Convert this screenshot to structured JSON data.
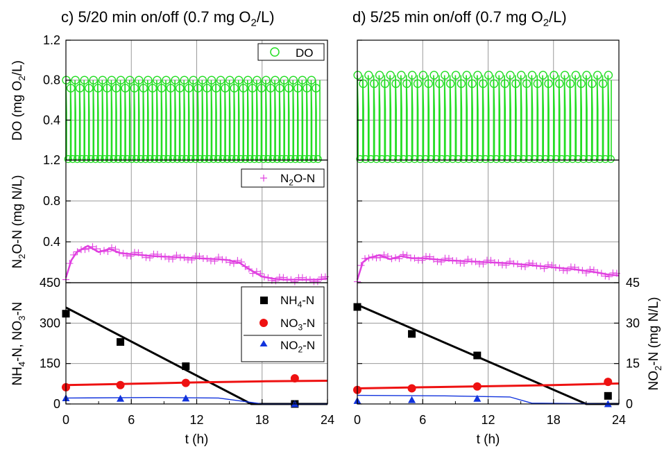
{
  "colors": {
    "do": "#22dd22",
    "n2o": "#e040e0",
    "nh4": "#000000",
    "no3": "#ee1111",
    "no2": "#1133dd",
    "grid": "#9a9a9a"
  },
  "labels": {
    "xlabel": "t (h)",
    "ylabel_do": "DO (mg O₂/L)",
    "ylabel_n2o": "N₂O-N (mg N/L)",
    "ylabel_n": "NH₄-N, NO₃-N",
    "ylabel_no2": "NO₂-N (mg N/L)"
  },
  "legend": {
    "do": "DO",
    "n2o": "N₂O-N",
    "nh4": "NH₄-N",
    "no3": "NO₃-N",
    "no2": "NO₂-N"
  },
  "ticks": {
    "x": [
      "0",
      "6",
      "12",
      "18",
      "24"
    ],
    "do": [
      "0.4",
      "0.8",
      "1.2"
    ],
    "n2o": [
      "0.4",
      "0.8",
      "1.2"
    ],
    "n": [
      "0",
      "150",
      "300",
      "450"
    ],
    "no2": [
      "0",
      "15",
      "30",
      "45"
    ]
  },
  "chart_data": [
    {
      "panel": "c",
      "title": "c) 5/20 min on/off (0.7 mg O₂/L)",
      "type": "scatter",
      "xlabel": "t (h)",
      "xlim": [
        0,
        24
      ],
      "aeration_cycle_min": {
        "on": 5,
        "off": 20
      },
      "subplots": [
        {
          "name": "DO",
          "ylabel": "DO (mg O₂/L)",
          "ylim": [
            0,
            1.2
          ],
          "series": [
            {
              "name": "DO",
              "marker": "open-circle",
              "on_peak": 0.8,
              "off_level": 0.0,
              "end_x": 23
            }
          ]
        },
        {
          "name": "N2O",
          "ylabel": "N₂O-N (mg N/L)",
          "ylim": [
            0,
            1.2
          ],
          "series": [
            {
              "name": "N₂O-N",
              "marker": "plus",
              "x": [
                0,
                0.5,
                1,
                2,
                3,
                4,
                5,
                6,
                8,
                10,
                12,
                14,
                15,
                16,
                17,
                18,
                19,
                20,
                21,
                22,
                23,
                24
              ],
              "y": [
                0.05,
                0.22,
                0.3,
                0.36,
                0.3,
                0.33,
                0.29,
                0.28,
                0.26,
                0.25,
                0.24,
                0.23,
                0.22,
                0.19,
                0.12,
                0.06,
                0.04,
                0.03,
                0.03,
                0.03,
                0.03,
                0.04
              ]
            }
          ]
        },
        {
          "name": "Nitrogen",
          "ylabel": "NH₄-N, NO₃-N",
          "ylim": [
            0,
            450
          ],
          "y2label": "NO₂-N (mg N/L)",
          "y2lim": [
            0,
            45
          ],
          "series": [
            {
              "name": "NH₄-N",
              "marker": "square",
              "x": [
                0,
                5,
                11,
                21
              ],
              "y": [
                335,
                230,
                140,
                0
              ]
            },
            {
              "name": "NO₃-N",
              "marker": "circle",
              "x": [
                0,
                5,
                11,
                21
              ],
              "y": [
                62,
                70,
                78,
                95
              ]
            },
            {
              "name": "NO₂-N",
              "marker": "triangle",
              "axis": "right",
              "x": [
                0,
                5,
                11,
                21
              ],
              "y": [
                2.2,
                2.0,
                2.1,
                0
              ]
            }
          ],
          "model": [
            {
              "name": "NH₄-N model",
              "x": [
                0,
                17,
                24
              ],
              "y": [
                358,
                0,
                0
              ]
            },
            {
              "name": "NO₃-N model",
              "x": [
                0,
                6,
                12,
                18,
                24
              ],
              "y": [
                70,
                75,
                80,
                84,
                86
              ]
            },
            {
              "name": "NO₂-N model",
              "axis": "right",
              "x": [
                0,
                8,
                14,
                17,
                18,
                24
              ],
              "y": [
                2.2,
                2.4,
                2.2,
                0.6,
                0,
                0
              ]
            }
          ]
        }
      ]
    },
    {
      "panel": "d",
      "title": "d) 5/25 min on/off (0.7 mg O₂/L)",
      "type": "scatter",
      "xlabel": "t (h)",
      "xlim": [
        0,
        24
      ],
      "aeration_cycle_min": {
        "on": 5,
        "off": 25
      },
      "subplots": [
        {
          "name": "DO",
          "ylabel": "DO (mg O₂/L)",
          "ylim": [
            0,
            1.2
          ],
          "series": [
            {
              "name": "DO",
              "marker": "open-circle",
              "on_peak": 0.85,
              "off_level": 0.0,
              "end_x": 23
            }
          ]
        },
        {
          "name": "N2O",
          "ylabel": "N₂O-N (mg N/L)",
          "ylim": [
            0,
            1.2
          ],
          "series": [
            {
              "name": "N₂O-N",
              "marker": "plus",
              "x": [
                0,
                0.5,
                1,
                2,
                3,
                4,
                5,
                6,
                8,
                10,
                12,
                14,
                16,
                18,
                20,
                22,
                23,
                24
              ],
              "y": [
                0.03,
                0.2,
                0.24,
                0.27,
                0.23,
                0.26,
                0.24,
                0.24,
                0.22,
                0.21,
                0.2,
                0.19,
                0.17,
                0.15,
                0.13,
                0.1,
                0.08,
                0.07
              ]
            }
          ]
        },
        {
          "name": "Nitrogen",
          "ylabel": "NH₄-N, NO₃-N",
          "ylim": [
            0,
            450
          ],
          "y2label": "NO₂-N (mg N/L)",
          "y2lim": [
            0,
            45
          ],
          "series": [
            {
              "name": "NH₄-N",
              "marker": "square",
              "x": [
                0,
                5,
                11,
                23
              ],
              "y": [
                360,
                260,
                180,
                30
              ]
            },
            {
              "name": "NO₃-N",
              "marker": "circle",
              "x": [
                0,
                5,
                11,
                23
              ],
              "y": [
                52,
                58,
                65,
                82
              ]
            },
            {
              "name": "NO₂-N",
              "marker": "triangle",
              "axis": "right",
              "x": [
                0,
                5,
                11,
                23
              ],
              "y": [
                1.2,
                1.5,
                2.0,
                0
              ]
            }
          ],
          "model": [
            {
              "name": "NH₄-N model",
              "x": [
                0,
                21,
                24
              ],
              "y": [
                368,
                0,
                0
              ]
            },
            {
              "name": "NO₃-N model",
              "x": [
                0,
                6,
                12,
                18,
                24
              ],
              "y": [
                58,
                62,
                66,
                70,
                76
              ]
            },
            {
              "name": "NO₂-N model",
              "axis": "right",
              "x": [
                0,
                8,
                14,
                16,
                24
              ],
              "y": [
                3.2,
                3.0,
                2.6,
                0.3,
                0
              ]
            }
          ]
        }
      ]
    }
  ]
}
